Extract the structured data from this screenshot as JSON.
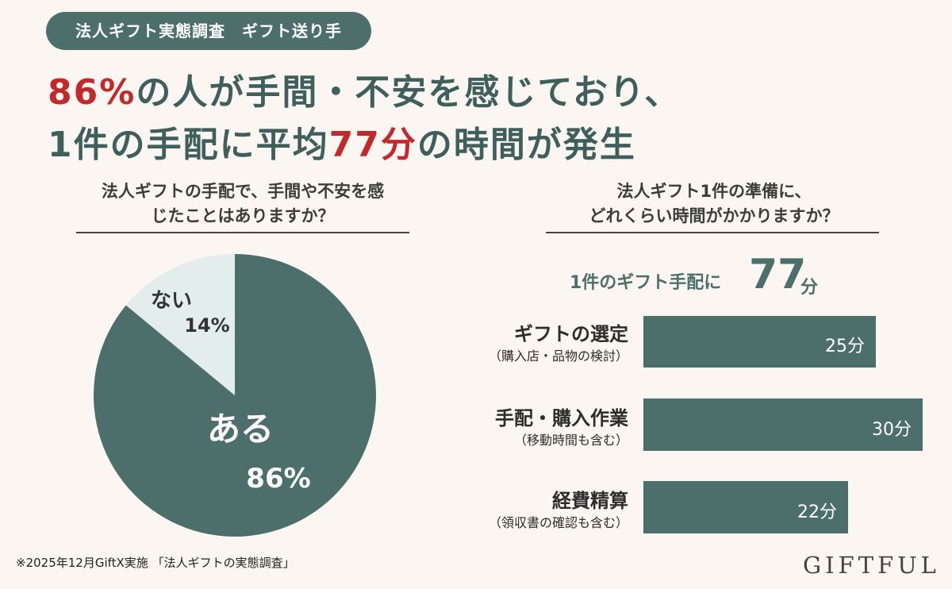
{
  "tag": "法人ギフト実態調査　ギフト送り手",
  "headline": {
    "line1_highlight": "86%",
    "line1_rest": "の人が手間・不安を感じており、",
    "line2_pre": "1件の手配に平均",
    "line2_highlight": "77分",
    "line2_post": "の時間が発生"
  },
  "colors": {
    "accent": "#4d6f6b",
    "highlight": "#c3282b",
    "pie_minor": "#e3edec",
    "background": "#fbf6f1"
  },
  "pie_question": {
    "line1": "法人ギフトの手配で、手間や不安を感",
    "line2": "じたことはありますか？"
  },
  "bar_question": {
    "line1": "法人ギフト1件の準備に、",
    "line2": "どれくらい時間がかかりますか？"
  },
  "total": {
    "lead": "1件のギフト手配に",
    "value": "77",
    "unit": "分"
  },
  "chart_data": [
    {
      "type": "pie",
      "slices": [
        {
          "label": "ある",
          "value": 86,
          "display": "86%",
          "color": "#4d6f6b"
        },
        {
          "label": "ない",
          "value": 14,
          "display": "14%",
          "color": "#e3edec"
        }
      ]
    },
    {
      "type": "bar",
      "orientation": "horizontal",
      "categories": [
        {
          "main": "ギフトの選定",
          "sub": "（購入店・品物の検討）"
        },
        {
          "main": "手配・購入作業",
          "sub": "（移動時間も含む）"
        },
        {
          "main": "経費精算",
          "sub": "（領収書の確認も含む）"
        }
      ],
      "values": [
        25,
        30,
        22
      ],
      "value_labels": [
        "25分",
        "30分",
        "22分"
      ],
      "unit": "分"
    }
  ],
  "footnote": "※2025年12月GiftX実施 「法人ギフトの実態調査」",
  "logo": "GIFTFUL"
}
